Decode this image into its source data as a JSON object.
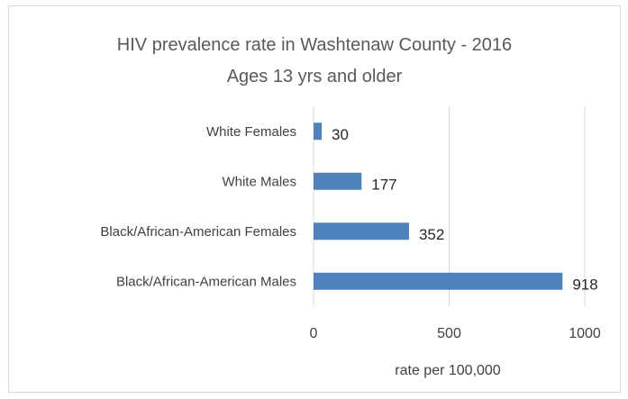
{
  "chart_data": {
    "type": "bar",
    "orientation": "horizontal",
    "title": "HIV prevalence rate in Washtenaw County - 2016",
    "subtitle": "Ages 13 yrs and older",
    "categories": [
      "White Females",
      "White Males",
      "Black/African-American Females",
      "Black/African-American Males"
    ],
    "values": [
      30,
      177,
      352,
      918
    ],
    "value_labels": [
      "30",
      "177",
      "352",
      "918"
    ],
    "xlabel": "rate per 100,000",
    "ylabel": "",
    "xlim": [
      0,
      1000
    ],
    "x_ticks": [
      0,
      500,
      1000
    ],
    "x_tick_labels": [
      "0",
      "500",
      "1000"
    ],
    "grid": "vertical",
    "legend": "none",
    "colors": {
      "bar": "#4e81bd",
      "grid": "#d9d9d9",
      "text": "#404040"
    }
  }
}
